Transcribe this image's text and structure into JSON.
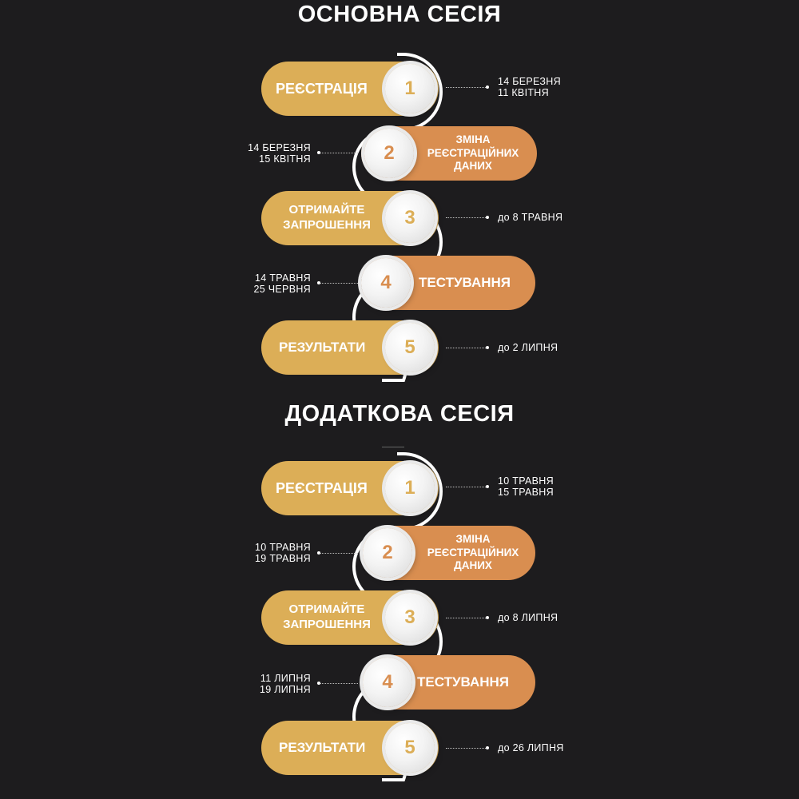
{
  "colors": {
    "background": "#1d1c1e",
    "gold": "#dcae57",
    "orange": "#d98e50",
    "white": "#ffffff"
  },
  "sessions": [
    {
      "title": "ОСНОВНА СЕСІЯ",
      "steps": [
        {
          "number": "1",
          "label": "РЕЄСТРАЦІЯ",
          "date_line1": "14 БЕРЕЗНЯ",
          "date_line2": "11 КВІТНЯ"
        },
        {
          "number": "2",
          "label_line1": "ЗМІНА",
          "label_line2": "РЕЄСТРАЦІЙНИХ",
          "label_line3": "ДАНИХ",
          "date_line1": "14 БЕРЕЗНЯ",
          "date_line2": "15 КВІТНЯ"
        },
        {
          "number": "3",
          "label_line1": "ОТРИМАЙТЕ",
          "label_line2": "ЗАПРОШЕННЯ",
          "date_line1": "до 8 ТРАВНЯ"
        },
        {
          "number": "4",
          "label": "ТЕСТУВАННЯ",
          "date_line1": "14 ТРАВНЯ",
          "date_line2": "25 ЧЕРВНЯ"
        },
        {
          "number": "5",
          "label": "РЕЗУЛЬТАТИ",
          "date_line1": "до 2 ЛИПНЯ"
        }
      ]
    },
    {
      "title": "ДОДАТКОВА СЕСІЯ",
      "steps": [
        {
          "number": "1",
          "label": "РЕЄСТРАЦІЯ",
          "date_line1": "10 ТРАВНЯ",
          "date_line2": "15 ТРАВНЯ"
        },
        {
          "number": "2",
          "label_line1": "ЗМІНА",
          "label_line2": "РЕЄСТРАЦІЙНИХ",
          "label_line3": "ДАНИХ",
          "date_line1": "10 ТРАВНЯ",
          "date_line2": "19 ТРАВНЯ"
        },
        {
          "number": "3",
          "label_line1": "ОТРИМАЙТЕ",
          "label_line2": "ЗАПРОШЕННЯ",
          "date_line1": "до 8 ЛИПНЯ"
        },
        {
          "number": "4",
          "label": "ТЕСТУВАННЯ",
          "date_line1": "11 ЛИПНЯ",
          "date_line2": "19 ЛИПНЯ"
        },
        {
          "number": "5",
          "label": "РЕЗУЛЬТАТИ",
          "date_line1": "до 26 ЛИПНЯ"
        }
      ]
    }
  ]
}
